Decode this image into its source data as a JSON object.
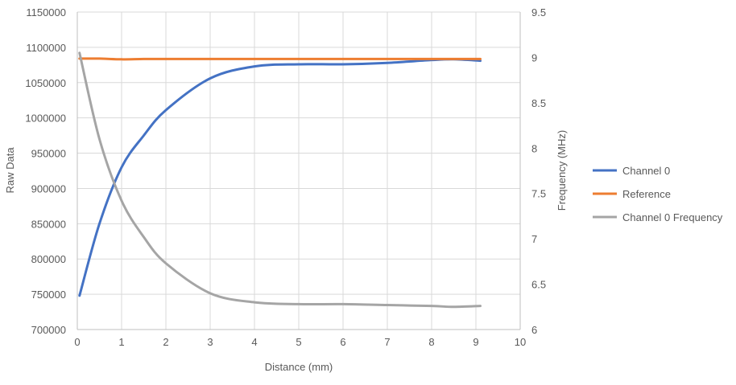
{
  "chart_data": {
    "type": "line",
    "xlabel": "Distance (mm)",
    "ylabel": "Raw Data",
    "y2label": "Frequency (MHz)",
    "xlim": [
      0,
      10
    ],
    "ylim": [
      700000,
      1150000
    ],
    "y2lim": [
      6,
      9.5
    ],
    "xticks": [
      "0",
      "1",
      "2",
      "3",
      "4",
      "5",
      "6",
      "7",
      "8",
      "9",
      "10"
    ],
    "yticks": [
      "700000",
      "750000",
      "800000",
      "850000",
      "900000",
      "950000",
      "1000000",
      "1050000",
      "1100000",
      "1150000"
    ],
    "y2ticks": [
      "6",
      "6.5",
      "7",
      "7.5",
      "8",
      "8.5",
      "9",
      "9.5"
    ],
    "grid": true,
    "legend_position": "right",
    "x": [
      0.05,
      0.5,
      1,
      1.5,
      2,
      3,
      4,
      5,
      6,
      7,
      8,
      8.5,
      9.1
    ],
    "series": [
      {
        "name": "Channel 0",
        "axis": "left",
        "color": "#4472C4",
        "values": [
          748000,
          850000,
          930000,
          975000,
          1011000,
          1056000,
          1073000,
          1076000,
          1076000,
          1078000,
          1082000,
          1083000,
          1081000
        ]
      },
      {
        "name": "Reference",
        "axis": "left",
        "color": "#ED7D31",
        "values": [
          1084000,
          1084000,
          1083000,
          1083500,
          1083500,
          1083500,
          1083500,
          1083500,
          1083500,
          1083500,
          1083500,
          1083500,
          1083500
        ]
      },
      {
        "name": "Channel 0 Frequency",
        "axis": "right",
        "color": "#A5A5A5",
        "values": [
          9.05,
          8.1,
          7.42,
          7.02,
          6.73,
          6.4,
          6.3,
          6.28,
          6.28,
          6.27,
          6.26,
          6.25,
          6.26
        ]
      }
    ]
  }
}
